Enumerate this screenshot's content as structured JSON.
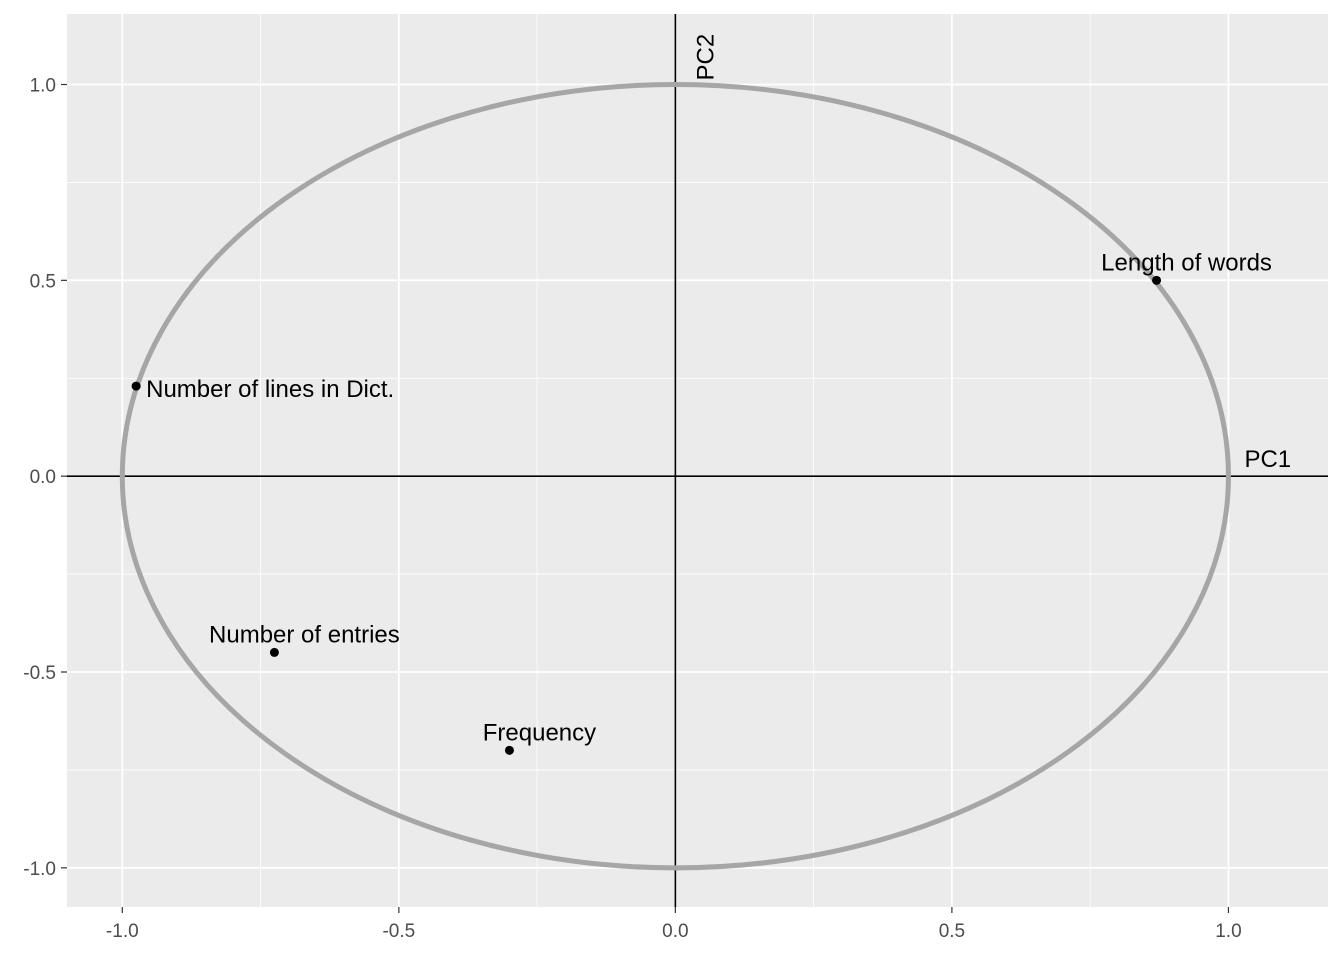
{
  "chart_data": {
    "type": "scatter",
    "title": "",
    "xlabel": "",
    "ylabel": "",
    "xlim": [
      -1.1,
      1.18
    ],
    "ylim": [
      -1.1,
      1.18
    ],
    "x_ticks": [
      -1.0,
      -0.5,
      0.0,
      0.5,
      1.0
    ],
    "x_tick_labels": [
      "-1.0",
      "-0.5",
      "0.0",
      "0.5",
      "1.0"
    ],
    "y_ticks": [
      -1.0,
      -0.5,
      0.0,
      0.5,
      1.0
    ],
    "y_tick_labels": [
      "-1.0",
      "-0.5",
      "0.0",
      "0.5",
      "1.0"
    ],
    "grid": true,
    "unit_circle": {
      "radius": 1,
      "color": "#a6a6a6"
    },
    "reference_axes": {
      "x_name": "PC1",
      "y_name": "PC2"
    },
    "points": [
      {
        "label": "Length of words",
        "x": 0.87,
        "y": 0.5
      },
      {
        "label": "Number of lines in Dict.",
        "x": -0.975,
        "y": 0.23
      },
      {
        "label": "Number of entries",
        "x": -0.725,
        "y": -0.45
      },
      {
        "label": "Frequency",
        "x": -0.3,
        "y": -0.7
      }
    ],
    "colors": {
      "panel": "#ebebeb",
      "grid": "#ffffff",
      "point": "#000000",
      "axis_line": "#000000",
      "tick_text": "#4d4d4d"
    }
  }
}
